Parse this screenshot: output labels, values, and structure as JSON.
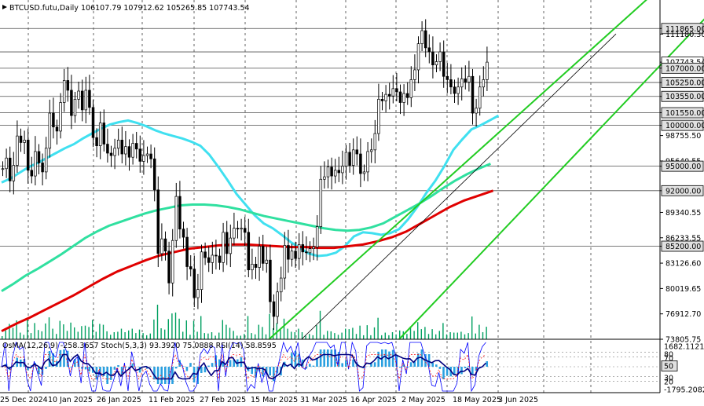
{
  "header": {
    "symbol": "BTCUSD.futu,Daily",
    "ohlc": "106107.79  107912.62  105265.85  107743.54"
  },
  "indicators_label": "OsMA(12,26,9) -258.3657   Stoch(5,3,3) 93.3920 75.0888   RSI(14) 58.8595",
  "colors": {
    "background": "#ffffff",
    "bull_candle": "#000000",
    "bear_candle": "#000000",
    "ma_short": "#40e0f0",
    "ma_mid": "#30e0a0",
    "ma_long": "#e00000",
    "channel": "#22cc22",
    "trendline": "#000000",
    "volume": "#00a060",
    "osma": "#2aa0e0",
    "stoch_main": "#0000ff",
    "stoch_signal": "#ff0000",
    "rsi": "#000080"
  },
  "chart_data": {
    "type": "candlestick",
    "symbol": "BTCUSD.futu",
    "timeframe": "Daily",
    "price_axis": {
      "min": 73805,
      "max": 114200,
      "tick_labels": [
        "111865.00",
        "111180.30",
        "107743.54",
        "107000.00",
        "105250.00",
        "103550.00",
        "101550.00",
        "100000.00",
        "98755.50",
        "95640.55",
        "95000.00",
        "92000.00",
        "89340.55",
        "86233.55",
        "85200.00",
        "83126.60",
        "80019.65",
        "76912.70",
        "73805.75"
      ],
      "boxed_levels": [
        111865,
        107743.54,
        107000,
        105250,
        103550,
        101550,
        100000,
        95000,
        92000,
        85200
      ],
      "current_price": 107743.54
    },
    "horizontal_levels": [
      111865,
      109000,
      107000,
      105250,
      103550,
      101550,
      100000,
      95000,
      92000,
      85200
    ],
    "x_axis": {
      "date_labels": [
        "25 Dec 2024",
        "10 Jan 2025",
        "26 Jan 2025",
        "11 Feb 2025",
        "27 Feb 2025",
        "15 Mar 2025",
        "31 Mar 2025",
        "16 Apr 2025",
        "2 May 2025",
        "18 May 2025",
        "3 Jun 2025"
      ]
    },
    "ohlc_last": {
      "open": 106107.79,
      "high": 107912.62,
      "low": 105265.85,
      "close": 107743.54
    },
    "closes": [
      94700,
      96000,
      93200,
      95100,
      98700,
      97900,
      98200,
      94500,
      93800,
      96800,
      95400,
      94300,
      97200,
      101500,
      99800,
      99300,
      102800,
      105500,
      104300,
      101200,
      103200,
      104200,
      101900,
      104300,
      102200,
      98500,
      97500,
      100300,
      97700,
      96600,
      96300,
      97200,
      98200,
      96500,
      97400,
      96100,
      97800,
      97100,
      95600,
      96300,
      96500,
      95900,
      92100,
      84300,
      86100,
      84600,
      80700,
      85900,
      91300,
      87300,
      86300,
      82700,
      82400,
      78900,
      79900,
      84500,
      83800,
      83200,
      84100,
      84000,
      83200,
      86900,
      84300,
      86200,
      87400,
      87300,
      87400,
      86900,
      82300,
      83000,
      82600,
      85200,
      83100,
      83500,
      78400,
      76600,
      79600,
      81300,
      85300,
      83600,
      84600,
      83700,
      85400,
      84500,
      84400,
      84900,
      85100,
      87600,
      93400,
      93700,
      94900,
      93800,
      94500,
      94200,
      95000,
      96700,
      95100,
      97000,
      96500,
      94100,
      94300,
      96800,
      97000,
      99000,
      103200,
      103000,
      103800,
      103600,
      104500,
      104100,
      102800,
      103900,
      103400,
      105600,
      106800,
      110000,
      111600,
      109500,
      109000,
      107400,
      107800,
      109000,
      106000,
      105600,
      104700,
      103900,
      104700,
      105700,
      105300,
      106000,
      101500,
      102100,
      104700,
      105600,
      107743.54
    ],
    "channel_lines": [
      {
        "from": {
          "bar": 74,
          "price": 73805
        },
        "to": {
          "bar": 185,
          "price": 118000
        }
      },
      {
        "from": {
          "bar": 110,
          "price": 73805
        },
        "to": {
          "bar": 197,
          "price": 114200
        }
      }
    ],
    "trendline": {
      "from": {
        "bar": 83,
        "price": 73805
      },
      "to": {
        "bar": 170,
        "price": 111200
      }
    },
    "moving_averages": [
      {
        "role": "short",
        "values_start_bar": 0,
        "values": [
          93000,
          93500,
          94200,
          94900,
          95400,
          96000,
          96600,
          97200,
          97700,
          98400,
          99000,
          99600,
          100100,
          100400,
          100600,
          100300,
          99900,
          99400,
          99000,
          98700,
          98400,
          98000,
          97500,
          96400,
          94900,
          93300,
          91600,
          90300,
          89000,
          88000,
          87400,
          86600,
          85700,
          85000,
          84300,
          84000,
          84100,
          84400,
          85200,
          86400,
          86900,
          86800,
          86600,
          86800,
          87300,
          88500,
          90000,
          91700,
          93200,
          95000,
          97000,
          98300,
          99500,
          100000,
          100600,
          101200
        ],
        "step": 2.5
      },
      {
        "role": "mid",
        "values_start_bar": 0,
        "values": [
          79700,
          80600,
          81600,
          82400,
          83300,
          84200,
          85200,
          86200,
          87000,
          87700,
          88200,
          88700,
          89200,
          89600,
          89900,
          90200,
          90300,
          90300,
          90200,
          90000,
          89700,
          89300,
          88900,
          88600,
          88300,
          88000,
          87700,
          87400,
          87200,
          87100,
          87200,
          87500,
          88000,
          88800,
          89600,
          90400,
          91300,
          92300,
          93200,
          94000,
          94700,
          95300
        ],
        "step": 3.3
      },
      {
        "role": "long",
        "values_start_bar": 0,
        "values": [
          74800,
          75700,
          76500,
          77400,
          78300,
          79200,
          80200,
          81200,
          82100,
          82800,
          83500,
          84100,
          84500,
          84900,
          85100,
          85300,
          85400,
          85400,
          85300,
          85200,
          85100,
          85100,
          85000,
          85000,
          85200,
          85400,
          85800,
          86300,
          87000,
          88000,
          89000,
          90000,
          90800,
          91400,
          92000
        ],
        "step": 4
      }
    ],
    "oscillator_axis": {
      "tick_labels": [
        "1682.1121",
        "80",
        "70",
        "50",
        "30",
        "20",
        "-1795.2082"
      ],
      "levels": [
        80,
        70,
        50,
        30,
        20
      ],
      "min": -1795.2082,
      "max": 1682.1121
    },
    "oscillator_values": {
      "osma_last": -258.3657,
      "stoch_main_last": 93.392,
      "stoch_signal_last": 75.0888,
      "rsi_last": 58.8595
    }
  }
}
